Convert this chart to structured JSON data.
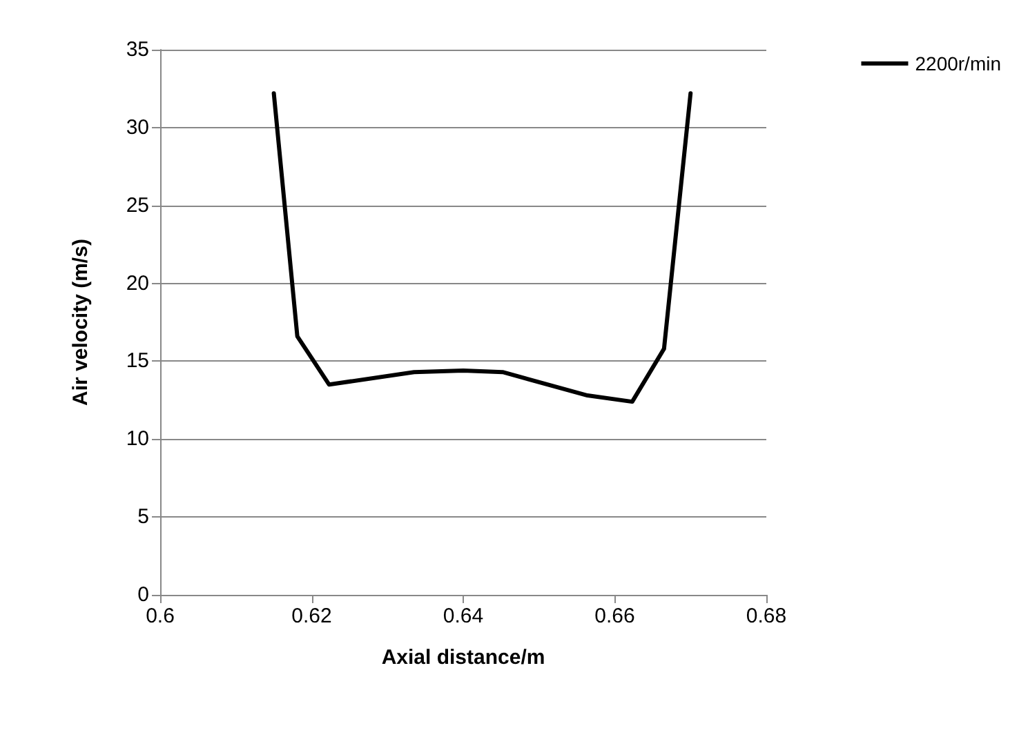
{
  "chart_data": {
    "type": "line",
    "xlabel": "Axial distance/m",
    "ylabel": "Air velocity (m/s)",
    "x": [
      0.615,
      0.6181,
      0.6223,
      0.6335,
      0.64,
      0.6452,
      0.6564,
      0.6623,
      0.6665,
      0.67
    ],
    "series": [
      {
        "name": "2200r/min",
        "color": "#000000",
        "values": [
          32.2,
          16.6,
          13.5,
          14.3,
          14.4,
          14.3,
          12.8,
          12.4,
          15.8,
          32.2
        ]
      }
    ],
    "xlim": [
      0.6,
      0.68
    ],
    "xticks": [
      0.6,
      0.62,
      0.64,
      0.66,
      0.68
    ],
    "ylim": [
      0,
      35
    ],
    "yticks": [
      0,
      5,
      10,
      15,
      20,
      25,
      30,
      35
    ],
    "grid": "y",
    "legend": "top right",
    "marker": "none",
    "line_style": "solid"
  }
}
